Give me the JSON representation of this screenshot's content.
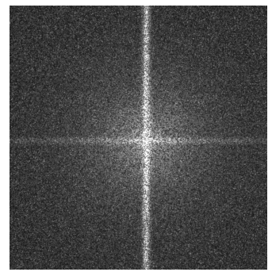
{
  "image": {
    "background_color": "#ffffff",
    "noise_base_color": "#0d0d0d",
    "highlight_color": "#ffffff",
    "features": {
      "vertical_streak": true,
      "horizontal_streak": true,
      "central_bright_blob": true
    }
  }
}
